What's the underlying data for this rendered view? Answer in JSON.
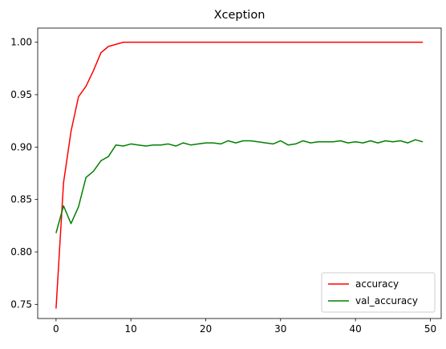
{
  "chart_data": {
    "type": "line",
    "title": "Xception",
    "xlabel": "",
    "ylabel": "",
    "xlim": [
      -2.45,
      51.45
    ],
    "ylim": [
      0.7365,
      1.0135
    ],
    "xticks": [
      0,
      10,
      20,
      30,
      40,
      50
    ],
    "yticks": [
      0.75,
      0.8,
      0.85,
      0.9,
      0.95,
      1.0
    ],
    "grid": false,
    "legend_position": "lower-right",
    "series": [
      {
        "name": "accuracy",
        "color": "#ff0000",
        "x": [
          0,
          1,
          2,
          3,
          4,
          5,
          6,
          7,
          8,
          9,
          10,
          11,
          12,
          13,
          14,
          15,
          16,
          17,
          18,
          19,
          20,
          21,
          22,
          23,
          24,
          25,
          26,
          27,
          28,
          29,
          30,
          31,
          32,
          33,
          34,
          35,
          36,
          37,
          38,
          39,
          40,
          41,
          42,
          43,
          44,
          45,
          46,
          47,
          48,
          49
        ],
        "values": [
          0.746,
          0.866,
          0.915,
          0.948,
          0.958,
          0.973,
          0.99,
          0.996,
          0.998,
          1.0,
          1.0,
          1.0,
          1.0,
          1.0,
          1.0,
          1.0,
          1.0,
          1.0,
          1.0,
          1.0,
          1.0,
          1.0,
          1.0,
          1.0,
          1.0,
          1.0,
          1.0,
          1.0,
          1.0,
          1.0,
          1.0,
          1.0,
          1.0,
          1.0,
          1.0,
          1.0,
          1.0,
          1.0,
          1.0,
          1.0,
          1.0,
          1.0,
          1.0,
          1.0,
          1.0,
          1.0,
          1.0,
          1.0,
          1.0,
          1.0
        ]
      },
      {
        "name": "val_accuracy",
        "color": "#008000",
        "x": [
          0,
          1,
          2,
          3,
          4,
          5,
          6,
          7,
          8,
          9,
          10,
          11,
          12,
          13,
          14,
          15,
          16,
          17,
          18,
          19,
          20,
          21,
          22,
          23,
          24,
          25,
          26,
          27,
          28,
          29,
          30,
          31,
          32,
          33,
          34,
          35,
          36,
          37,
          38,
          39,
          40,
          41,
          42,
          43,
          44,
          45,
          46,
          47,
          48,
          49
        ],
        "values": [
          0.818,
          0.844,
          0.827,
          0.843,
          0.871,
          0.877,
          0.887,
          0.891,
          0.902,
          0.901,
          0.903,
          0.902,
          0.901,
          0.902,
          0.902,
          0.903,
          0.901,
          0.904,
          0.902,
          0.903,
          0.904,
          0.904,
          0.903,
          0.906,
          0.904,
          0.906,
          0.906,
          0.905,
          0.904,
          0.903,
          0.906,
          0.902,
          0.903,
          0.906,
          0.904,
          0.905,
          0.905,
          0.905,
          0.906,
          0.904,
          0.905,
          0.904,
          0.906,
          0.904,
          0.906,
          0.905,
          0.906,
          0.904,
          0.907,
          0.905
        ]
      }
    ]
  }
}
